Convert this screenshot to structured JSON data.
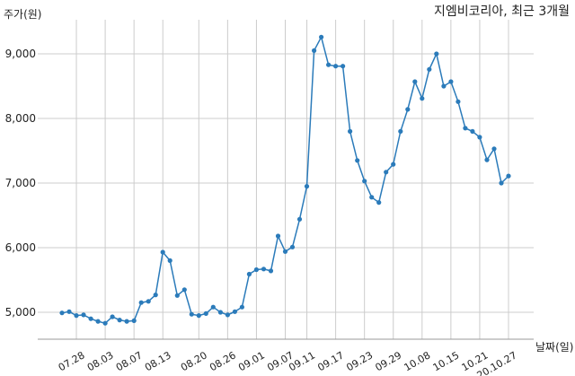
{
  "chart_data": {
    "type": "line",
    "title": "지엠비코리아, 최근 3개월",
    "ylabel": "주가(원)",
    "xlabel": "날짜(일)",
    "ylim": [
      4600,
      9500
    ],
    "yticks": [
      5000,
      6000,
      7000,
      8000,
      9000
    ],
    "ytick_labels": [
      "5,000",
      "6,000",
      "7,000",
      "8,000",
      "9,000"
    ],
    "xtick_labels": [
      "07.28",
      "08.03",
      "08.07",
      "08.13",
      "08.20",
      "08.26",
      "09.01",
      "09.07",
      "09.11",
      "09.17",
      "09.23",
      "09.29",
      "10.08",
      "10.15",
      "10.21",
      "20.10.27"
    ],
    "xtick_index": [
      2,
      6,
      10,
      14,
      19,
      23,
      27,
      31,
      34,
      38,
      42,
      46,
      50,
      54,
      58,
      62
    ],
    "grid": true,
    "color": "#2b7bba",
    "series": [
      {
        "name": "",
        "values": [
          4990,
          5010,
          4950,
          4960,
          4900,
          4860,
          4830,
          4930,
          4880,
          4860,
          4870,
          5150,
          5170,
          5270,
          5930,
          5800,
          5260,
          5350,
          4970,
          4950,
          4980,
          5080,
          5000,
          4960,
          5010,
          5080,
          5590,
          5660,
          5670,
          5640,
          6180,
          5940,
          6010,
          6440,
          6950,
          9050,
          9260,
          8830,
          8810,
          8810,
          7800,
          7350,
          7030,
          6780,
          6700,
          7170,
          7290,
          7800,
          8140,
          8570,
          8310,
          8760,
          9000,
          8500,
          8570,
          8260,
          7850,
          7800,
          7710,
          7360,
          7530,
          7000,
          7110
        ]
      }
    ]
  }
}
